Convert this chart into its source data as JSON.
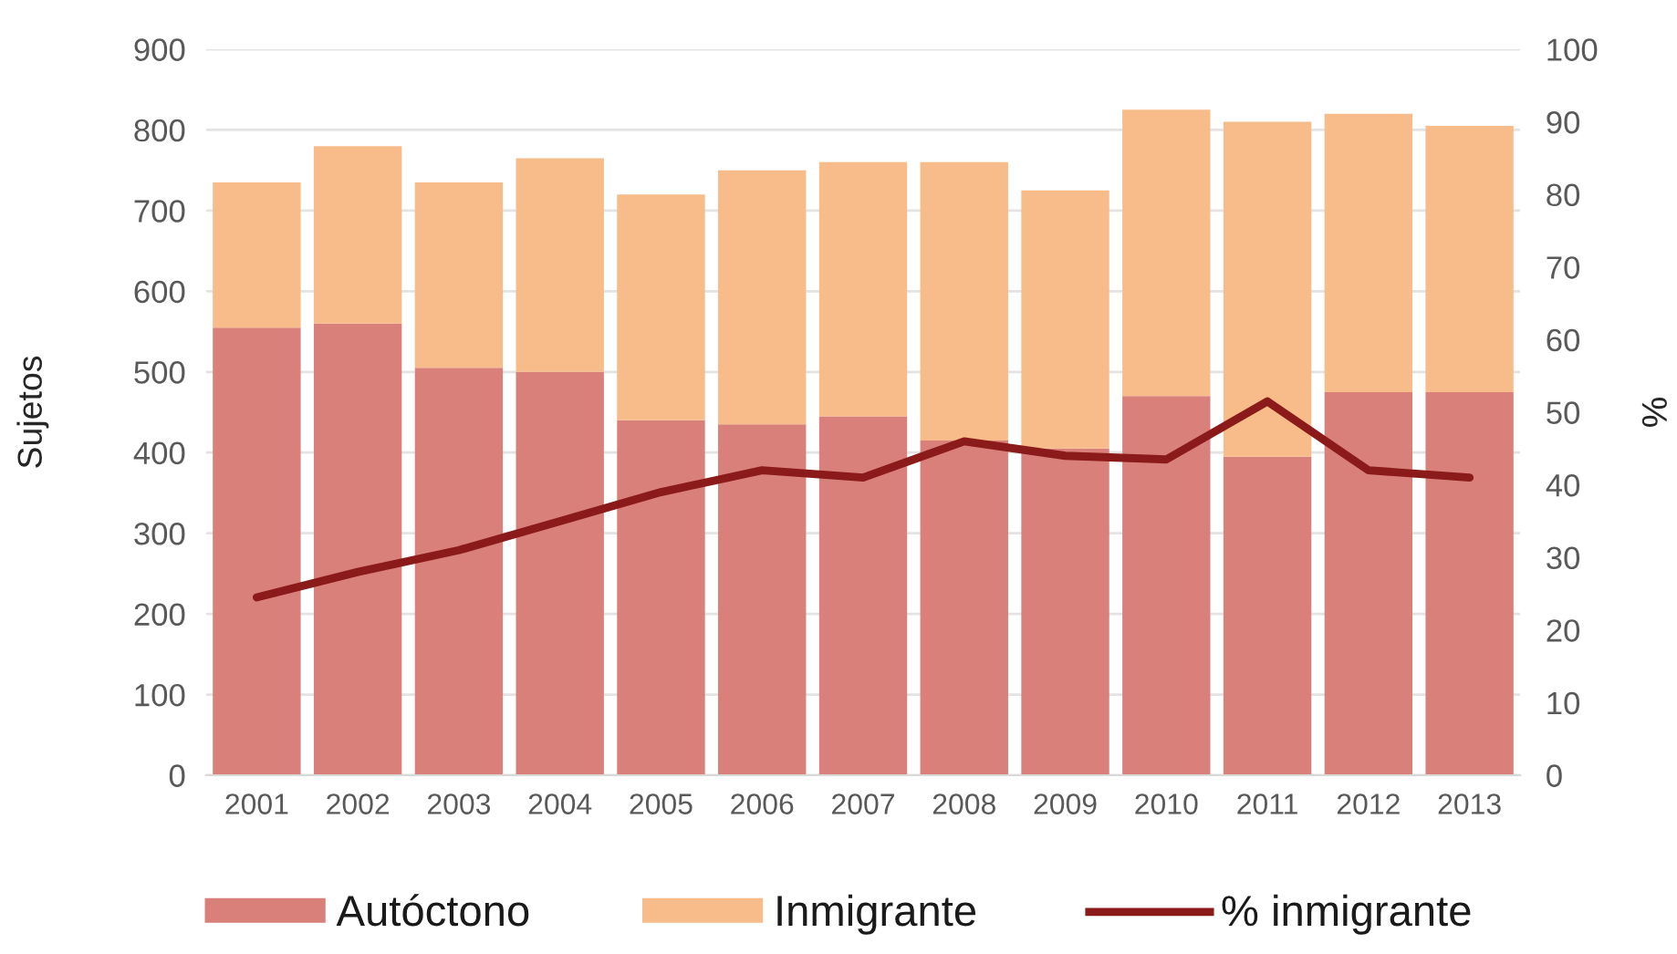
{
  "chart_data": {
    "type": "bar",
    "stacked": true,
    "categories": [
      "2001",
      "2002",
      "2003",
      "2004",
      "2005",
      "2006",
      "2007",
      "2008",
      "2009",
      "2010",
      "2011",
      "2012",
      "2013"
    ],
    "series": [
      {
        "name": "Autóctono",
        "color": "#d9807a",
        "values": [
          555,
          560,
          505,
          500,
          440,
          435,
          445,
          415,
          405,
          470,
          395,
          475,
          475
        ]
      },
      {
        "name": "Inmigrante",
        "color": "#f8bb8a",
        "values": [
          180,
          220,
          230,
          265,
          280,
          315,
          315,
          345,
          320,
          355,
          415,
          345,
          330
        ]
      },
      {
        "name": "% inmigrante",
        "type": "line",
        "axis": "y2",
        "color": "#8b1a1a",
        "values": [
          24.5,
          28,
          31,
          35,
          39,
          42,
          41,
          46,
          44,
          43.5,
          51.5,
          42,
          41
        ]
      }
    ],
    "ylabel": "Sujetos",
    "y2label": "%",
    "ylim": [
      0,
      900
    ],
    "yticks": [
      0,
      100,
      200,
      300,
      400,
      500,
      600,
      700,
      800,
      900
    ],
    "y2lim": [
      0,
      100
    ],
    "y2ticks": [
      0,
      10,
      20,
      30,
      40,
      50,
      60,
      70,
      80,
      90,
      100
    ],
    "grid": "y",
    "legend": "bottom",
    "marker": "none",
    "line_style": "solid"
  }
}
